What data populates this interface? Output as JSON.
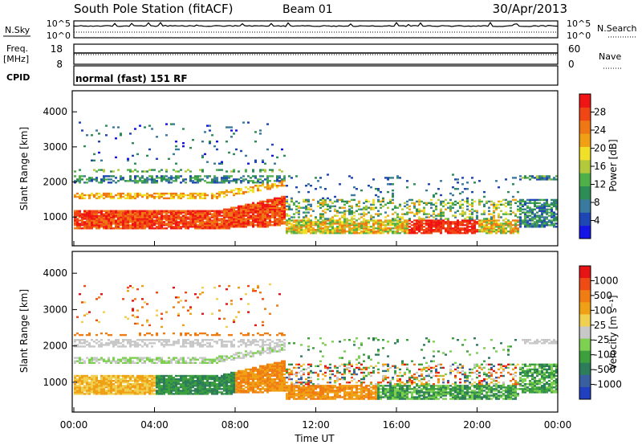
{
  "header": {
    "station": "South Pole Station (fitACF)",
    "beam": "Beam 01",
    "date": "30/Apr/2013"
  },
  "top_panels": {
    "nsky_label": "N.Sky",
    "nsky_ticks": [
      "10^5",
      "10^0"
    ],
    "nsearch_label": "N.Search",
    "nsearch_ticks": [
      "10^5",
      "10^0"
    ],
    "freq_label": "Freq.",
    "freq_unit": "[MHz]",
    "freq_ticks": [
      "18",
      "8"
    ],
    "nave_label": "Nave",
    "nave_ticks": [
      "60",
      "0"
    ],
    "cpid_label": "CPID",
    "cpid_text": "normal (fast) 151 RF"
  },
  "colors": {
    "power": [
      "#1414e6",
      "#1e46b4",
      "#3a7a9e",
      "#2e8c55",
      "#4fb04a",
      "#b4c83c",
      "#f0e028",
      "#f0a014",
      "#f07814",
      "#f04614",
      "#f01414"
    ],
    "velocity": [
      "#e61414",
      "#f04b14",
      "#f07d14",
      "#f0a014",
      "#f0d050",
      "#c8c8c8",
      "#7dd050",
      "#3ca03c",
      "#2d7d5a",
      "#3a5fa0",
      "#2040c0"
    ]
  },
  "chart_data": [
    {
      "type": "heatmap",
      "name": "power",
      "ylabel": "Slant Range [km]",
      "xticks": [
        "00:00",
        "04:00",
        "08:00",
        "12:00",
        "16:00",
        "20:00",
        "00:00"
      ],
      "yticks": [
        "1000",
        "2000",
        "3000",
        "4000"
      ],
      "ylim": [
        180,
        4600
      ],
      "colorbar_label": "Power [dB]",
      "colorbar_ticks": [
        "4",
        "8",
        "12",
        "16",
        "20",
        "24",
        "28"
      ],
      "clim": [
        0,
        32
      ]
    },
    {
      "type": "heatmap",
      "name": "velocity",
      "ylabel": "Slant Range [km]",
      "xlabel": "Time UT",
      "xticks": [
        "00:00",
        "04:00",
        "08:00",
        "12:00",
        "16:00",
        "20:00",
        "00:00"
      ],
      "yticks": [
        "1000",
        "2000",
        "3000",
        "4000"
      ],
      "ylim": [
        180,
        4600
      ],
      "colorbar_label": "Velocity [m s⁻¹]",
      "colorbar_ticks": [
        "1000",
        "500",
        "100",
        "25",
        "-25",
        "-100",
        "-500",
        "-1000"
      ]
    }
  ]
}
